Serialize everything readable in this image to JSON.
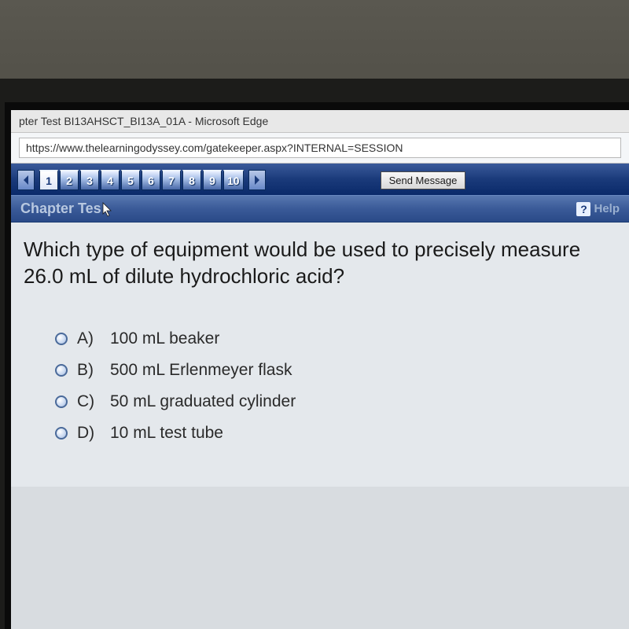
{
  "window": {
    "title": "pter Test BI13AHSCT_BI13A_01A - Microsoft Edge"
  },
  "address": {
    "url": "https://www.thelearningodyssey.com/gatekeeper.aspx?INTERNAL=SESSION"
  },
  "nav": {
    "questions": [
      "1",
      "2",
      "3",
      "4",
      "5",
      "6",
      "7",
      "8",
      "9",
      "10"
    ],
    "active_index": 0,
    "send_label": "Send Message"
  },
  "chapter": {
    "title": "Chapter Tes",
    "help_label": "Help"
  },
  "question": {
    "text": "Which type of equipment would be used to precisely measure 26.0 mL of dilute hydrochloric acid?"
  },
  "options": [
    {
      "letter": "A)",
      "text": "100 mL beaker"
    },
    {
      "letter": "B)",
      "text": "500 mL Erlenmeyer flask"
    },
    {
      "letter": "C)",
      "text": "50 mL graduated cylinder"
    },
    {
      "letter": "D)",
      "text": "10 mL test tube"
    }
  ],
  "colors": {
    "nav_bg": "#1a3a7a",
    "screen_bg": "#e4e8ec"
  }
}
